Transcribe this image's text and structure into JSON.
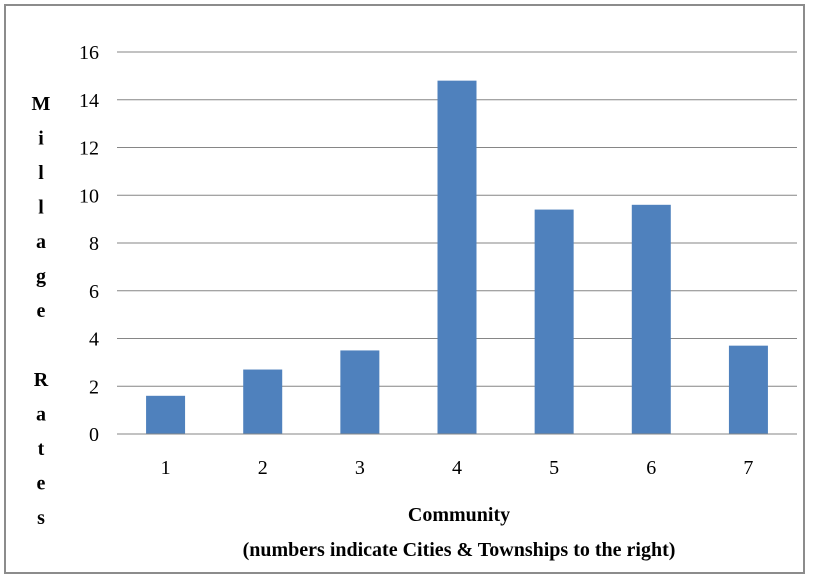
{
  "chart_data": {
    "type": "bar",
    "categories": [
      "1",
      "2",
      "3",
      "4",
      "5",
      "6",
      "7"
    ],
    "values": [
      1.6,
      2.7,
      3.5,
      14.8,
      9.4,
      9.6,
      3.7
    ],
    "xlabel": "Community",
    "xlabel_line2": "(numbers indicate Cities & Townships to the right)",
    "ylabel": "Millage Rates",
    "ylabel_letters": [
      "M",
      "i",
      "l",
      "l",
      "a",
      "g",
      "e",
      "",
      "R",
      "a",
      "t",
      "e",
      "s"
    ],
    "ylim": [
      0,
      16
    ],
    "yticks": [
      "0",
      "2",
      "4",
      "6",
      "8",
      "10",
      "12",
      "14",
      "16"
    ],
    "grid": true,
    "legend": "none",
    "bar_color": "#4f81bd",
    "grid_color": "#868686"
  }
}
